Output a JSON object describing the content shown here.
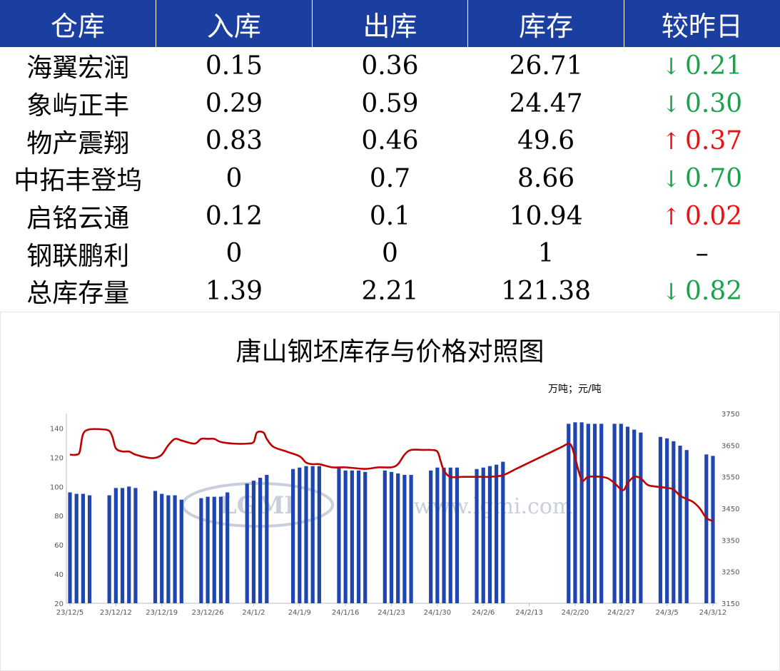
{
  "table": {
    "headers": [
      "仓库",
      "入库",
      "出库",
      "库存",
      "较昨日"
    ],
    "rows": [
      {
        "name": "海翼宏润",
        "in": "0.15",
        "out": "0.36",
        "stock": "26.71",
        "dir": "down",
        "arrow": "↓",
        "change": "0.21"
      },
      {
        "name": "象屿正丰",
        "in": "0.29",
        "out": "0.59",
        "stock": "24.47",
        "dir": "down",
        "arrow": "↓",
        "change": "0.30"
      },
      {
        "name": "物产震翔",
        "in": "0.83",
        "out": "0.46",
        "stock": "49.6",
        "dir": "up",
        "arrow": "↑",
        "change": "0.37"
      },
      {
        "name": "中拓丰登坞",
        "in": "0",
        "out": "0.7",
        "stock": "8.66",
        "dir": "down",
        "arrow": "↓",
        "change": "0.70"
      },
      {
        "name": "启铭云通",
        "in": "0.12",
        "out": "0.1",
        "stock": "10.94",
        "dir": "up",
        "arrow": "↑",
        "change": "0.02"
      },
      {
        "name": "钢联鹏利",
        "in": "0",
        "out": "0",
        "stock": "1",
        "dir": "none",
        "arrow": "",
        "change": "–"
      },
      {
        "name": "总库存量",
        "in": "1.39",
        "out": "2.21",
        "stock": "121.38",
        "dir": "down",
        "arrow": "↓",
        "change": "0.82"
      }
    ]
  },
  "colors": {
    "header_bg": "#1a3fa0",
    "down": "#1aa34a",
    "up": "#ee1111",
    "bar": "#1f46b0",
    "line": "#c00000"
  },
  "watermark": {
    "logo": "LGMI",
    "url": "www.lgmi.com"
  },
  "chart_data": {
    "type": "bar",
    "title": "唐山钢坯库存与价格对照图",
    "unit_label": "万吨；元/吨",
    "y_left": {
      "range": [
        20,
        150
      ],
      "ticks": [
        20,
        40,
        60,
        80,
        100,
        120,
        140
      ]
    },
    "y_right": {
      "range": [
        3150,
        3750
      ],
      "ticks": [
        3150,
        3250,
        3350,
        3450,
        3550,
        3650,
        3750
      ]
    },
    "x_range": [
      0,
      98
    ],
    "x_ticks": [
      {
        "x": 0,
        "label": "23/12/5"
      },
      {
        "x": 7,
        "label": "23/12/12"
      },
      {
        "x": 14,
        "label": "23/12/19"
      },
      {
        "x": 21,
        "label": "23/12/26"
      },
      {
        "x": 28,
        "label": "24/1/2"
      },
      {
        "x": 35,
        "label": "24/1/9"
      },
      {
        "x": 42,
        "label": "24/1/16"
      },
      {
        "x": 49,
        "label": "24/1/23"
      },
      {
        "x": 56,
        "label": "24/1/30"
      },
      {
        "x": 63,
        "label": "24/2/6"
      },
      {
        "x": 70,
        "label": "24/2/13"
      },
      {
        "x": 77,
        "label": "24/2/20"
      },
      {
        "x": 84,
        "label": "24/2/27"
      },
      {
        "x": 91,
        "label": "24/3/5"
      },
      {
        "x": 98,
        "label": "24/3/12"
      }
    ],
    "series": [
      {
        "name": "库存",
        "type": "bar",
        "axis": "left",
        "points": [
          [
            0,
            96
          ],
          [
            1,
            95
          ],
          [
            2,
            95
          ],
          [
            3,
            94
          ],
          [
            6,
            94
          ],
          [
            7,
            99
          ],
          [
            8,
            99
          ],
          [
            9,
            100
          ],
          [
            10,
            99
          ],
          [
            13,
            97
          ],
          [
            14,
            95
          ],
          [
            15,
            94
          ],
          [
            16,
            94
          ],
          [
            17,
            91
          ],
          [
            20,
            92
          ],
          [
            21,
            93
          ],
          [
            22,
            93
          ],
          [
            23,
            93
          ],
          [
            24,
            96
          ],
          [
            27,
            102
          ],
          [
            28,
            104
          ],
          [
            29,
            106
          ],
          [
            30,
            108
          ],
          [
            34,
            112
          ],
          [
            35,
            113
          ],
          [
            36,
            114
          ],
          [
            37,
            114
          ],
          [
            38,
            114
          ],
          [
            41,
            113
          ],
          [
            42,
            111
          ],
          [
            43,
            111
          ],
          [
            44,
            111
          ],
          [
            45,
            110
          ],
          [
            48,
            111
          ],
          [
            49,
            110
          ],
          [
            50,
            109
          ],
          [
            51,
            108
          ],
          [
            52,
            108
          ],
          [
            55,
            111
          ],
          [
            56,
            113
          ],
          [
            57,
            113
          ],
          [
            58,
            113
          ],
          [
            59,
            113
          ],
          [
            62,
            112
          ],
          [
            63,
            113
          ],
          [
            64,
            114
          ],
          [
            65,
            115
          ],
          [
            66,
            117
          ],
          [
            76,
            143
          ],
          [
            77,
            144
          ],
          [
            78,
            144
          ],
          [
            79,
            143
          ],
          [
            80,
            143
          ],
          [
            81,
            143
          ],
          [
            83,
            143
          ],
          [
            84,
            143
          ],
          [
            85,
            141
          ],
          [
            86,
            139
          ],
          [
            87,
            137
          ],
          [
            90,
            134
          ],
          [
            91,
            133
          ],
          [
            92,
            131
          ],
          [
            93,
            128
          ],
          [
            94,
            125
          ],
          [
            97,
            122
          ],
          [
            98,
            121
          ]
        ]
      },
      {
        "name": "价格",
        "type": "line",
        "axis": "right",
        "points": [
          [
            0,
            3620
          ],
          [
            1,
            3620
          ],
          [
            1.5,
            3630
          ],
          [
            2,
            3685
          ],
          [
            3,
            3700
          ],
          [
            5,
            3700
          ],
          [
            6,
            3695
          ],
          [
            6.5,
            3675
          ],
          [
            7,
            3640
          ],
          [
            8,
            3630
          ],
          [
            9,
            3630
          ],
          [
            10,
            3620
          ],
          [
            12,
            3610
          ],
          [
            13,
            3610
          ],
          [
            14,
            3620
          ],
          [
            15,
            3650
          ],
          [
            16,
            3670
          ],
          [
            17,
            3665
          ],
          [
            19,
            3655
          ],
          [
            20,
            3670
          ],
          [
            21,
            3670
          ],
          [
            22,
            3670
          ],
          [
            23,
            3660
          ],
          [
            25,
            3655
          ],
          [
            27,
            3655
          ],
          [
            28,
            3660
          ],
          [
            28.5,
            3690
          ],
          [
            29.5,
            3690
          ],
          [
            30,
            3670
          ],
          [
            31,
            3645
          ],
          [
            33,
            3630
          ],
          [
            35,
            3615
          ],
          [
            36,
            3595
          ],
          [
            37,
            3590
          ],
          [
            38,
            3590
          ],
          [
            40,
            3580
          ],
          [
            42,
            3580
          ],
          [
            45,
            3575
          ],
          [
            47,
            3580
          ],
          [
            49,
            3580
          ],
          [
            50,
            3590
          ],
          [
            51,
            3620
          ],
          [
            52,
            3635
          ],
          [
            54,
            3635
          ],
          [
            55,
            3635
          ],
          [
            56,
            3630
          ],
          [
            56.5,
            3600
          ],
          [
            57,
            3570
          ],
          [
            58,
            3550
          ],
          [
            60,
            3550
          ],
          [
            63,
            3550
          ],
          [
            64,
            3550
          ],
          [
            66,
            3555
          ],
          [
            68,
            3575
          ],
          [
            70,
            3595
          ],
          [
            73,
            3625
          ],
          [
            75,
            3645
          ],
          [
            76,
            3655
          ],
          [
            76.5,
            3645
          ],
          [
            77,
            3610
          ],
          [
            78,
            3540
          ],
          [
            79,
            3550
          ],
          [
            81,
            3550
          ],
          [
            82,
            3545
          ],
          [
            83,
            3530
          ],
          [
            84,
            3510
          ],
          [
            84.5,
            3510
          ],
          [
            85,
            3530
          ],
          [
            86,
            3550
          ],
          [
            87,
            3545
          ],
          [
            88,
            3525
          ],
          [
            89,
            3520
          ],
          [
            91,
            3515
          ],
          [
            92,
            3510
          ],
          [
            93,
            3490
          ],
          [
            94,
            3480
          ],
          [
            95,
            3470
          ],
          [
            96,
            3450
          ],
          [
            97,
            3420
          ],
          [
            98,
            3410
          ]
        ]
      }
    ]
  }
}
